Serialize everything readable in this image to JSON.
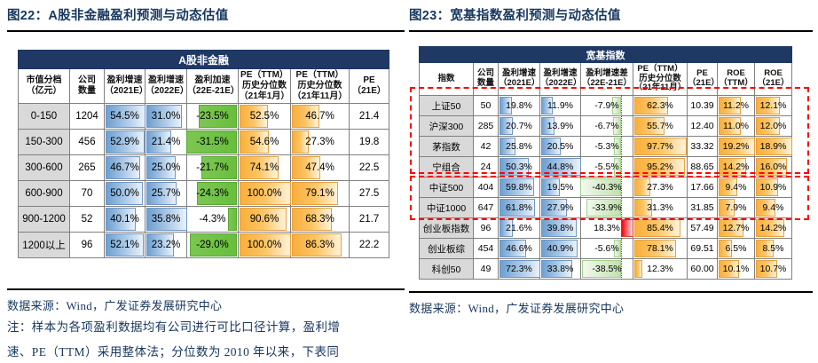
{
  "colors": {
    "navy": "#17375E",
    "banner_bg": "#1F3864",
    "label_bg": "#D9D9D9",
    "bar_blue": "#6D9FD0",
    "bar_orange": "#FAAF3B",
    "bar_green_solid": "#68BF3C",
    "bar_green_light": "#C2E0AE",
    "bar_red": "#FB0007",
    "highlight_red": "#FF0000"
  },
  "left": {
    "figure_title": "图22：A股非金融盈利预测与动态估值",
    "banner": "A股非金融",
    "headers": [
      "市值分档\n（亿元）",
      "公司\n数量",
      "盈利增速\n（2021E）",
      "盈利增速\n（2022E）",
      "盈利加速\n（22E-21E）",
      "PE（TTM）\n历史分位数\n（21年1月）",
      "PE（TTM）\n历史分位数\n（21年11月）",
      "PE\n（21E）"
    ],
    "columns": [
      {
        "kind": "label"
      },
      {
        "kind": "plain"
      },
      {
        "kind": "bar",
        "color": "blue",
        "scale": "colmax"
      },
      {
        "kind": "bar",
        "color": "blue",
        "scale": "colmax"
      },
      {
        "kind": "negbar"
      },
      {
        "kind": "bar",
        "color": "orange",
        "scale": "value"
      },
      {
        "kind": "bar",
        "color": "orange",
        "scale": "value"
      },
      {
        "kind": "plain"
      }
    ],
    "rows": [
      [
        "0-150",
        "1204",
        "54.5%",
        "31.0%",
        "-23.5%",
        "52.5%",
        "46.7%",
        "21.4"
      ],
      [
        "150-300",
        "456",
        "52.9%",
        "21.4%",
        "-31.5%",
        "54.6%",
        "27.3%",
        "19.8"
      ],
      [
        "300-600",
        "265",
        "46.7%",
        "25.0%",
        "-21.7%",
        "74.1%",
        "47.4%",
        "22.5"
      ],
      [
        "600-900",
        "70",
        "50.0%",
        "25.7%",
        "-24.3%",
        "100.0%",
        "79.1%",
        "27.5"
      ],
      [
        "900-1200",
        "52",
        "40.1%",
        "35.8%",
        "-4.3%",
        "90.6%",
        "68.3%",
        "21.7"
      ],
      [
        "1200以上",
        "96",
        "52.1%",
        "23.2%",
        "-29.0%",
        "100.0%",
        "86.3%",
        "22.2"
      ]
    ],
    "source": "数据来源：Wind，广发证券发展研究中心",
    "notes": [
      "注：样本为各项盈利数据均有公司进行可比口径计算，盈利增",
      "速、PE（TTM）采用整体法；分位数为 2010 年以来，下表同"
    ]
  },
  "right": {
    "figure_title": "图23：宽基指数盈利预测与动态估值",
    "banner": "宽基指数",
    "headers": [
      "指数",
      "公司\n数量",
      "盈利增速\n（2021E）",
      "盈利增速\n（2022E）",
      "盈利增速差\n（22E-21E）",
      "PE（TTM）\n历史分位数\n（21年11月）",
      "PE\n（21E）",
      "ROE\n（TTM）",
      "ROE\n（21E）"
    ],
    "columns": [
      {
        "kind": "label"
      },
      {
        "kind": "plain"
      },
      {
        "kind": "bar",
        "color": "blue",
        "scale": "colmax"
      },
      {
        "kind": "bar",
        "color": "blue",
        "scale": "colmax"
      },
      {
        "kind": "diff",
        "axis": 78
      },
      {
        "kind": "bar",
        "color": "orange",
        "scale": "value"
      },
      {
        "kind": "plain"
      },
      {
        "kind": "bar",
        "color": "orange",
        "scale": "colmax"
      },
      {
        "kind": "bar",
        "color": "orange",
        "scale": "colmax"
      }
    ],
    "rows": [
      [
        "上证50",
        "50",
        "19.8%",
        "11.9%",
        "-7.9%",
        "62.3%",
        "10.39",
        "11.2%",
        "12.1%"
      ],
      [
        "沪深300",
        "285",
        "20.7%",
        "13.9%",
        "-6.7%",
        "55.7%",
        "12.40",
        "11.0%",
        "12.0%"
      ],
      [
        "茅指数",
        "42",
        "25.8%",
        "20.5%",
        "-5.3%",
        "97.7%",
        "33.32",
        "19.2%",
        "18.9%"
      ],
      [
        "宁组合",
        "24",
        "50.3%",
        "44.8%",
        "-5.5%",
        "95.2%",
        "88.65",
        "14.2%",
        "16.0%"
      ],
      [
        "中证500",
        "404",
        "59.8%",
        "19.5%",
        "-40.3%",
        "27.3%",
        "17.66",
        "9.4%",
        "10.9%"
      ],
      [
        "中证1000",
        "647",
        "61.8%",
        "27.9%",
        "-33.9%",
        "31.3%",
        "31.85",
        "7.9%",
        "9.4%"
      ],
      [
        "创业板指数",
        "96",
        "21.6%",
        "39.8%",
        "18.3%",
        "85.4%",
        "57.49",
        "12.7%",
        "14.2%"
      ],
      [
        "创业板综",
        "454",
        "46.6%",
        "40.9%",
        "-5.6%",
        "78.1%",
        "69.51",
        "6.5%",
        "8.5%"
      ],
      [
        "科创50",
        "49",
        "72.3%",
        "33.8%",
        "-38.5%",
        "12.3%",
        "60.00",
        "10.1%",
        "10.7%"
      ]
    ],
    "source": "数据来源：Wind，广发证券发展研究中心"
  }
}
